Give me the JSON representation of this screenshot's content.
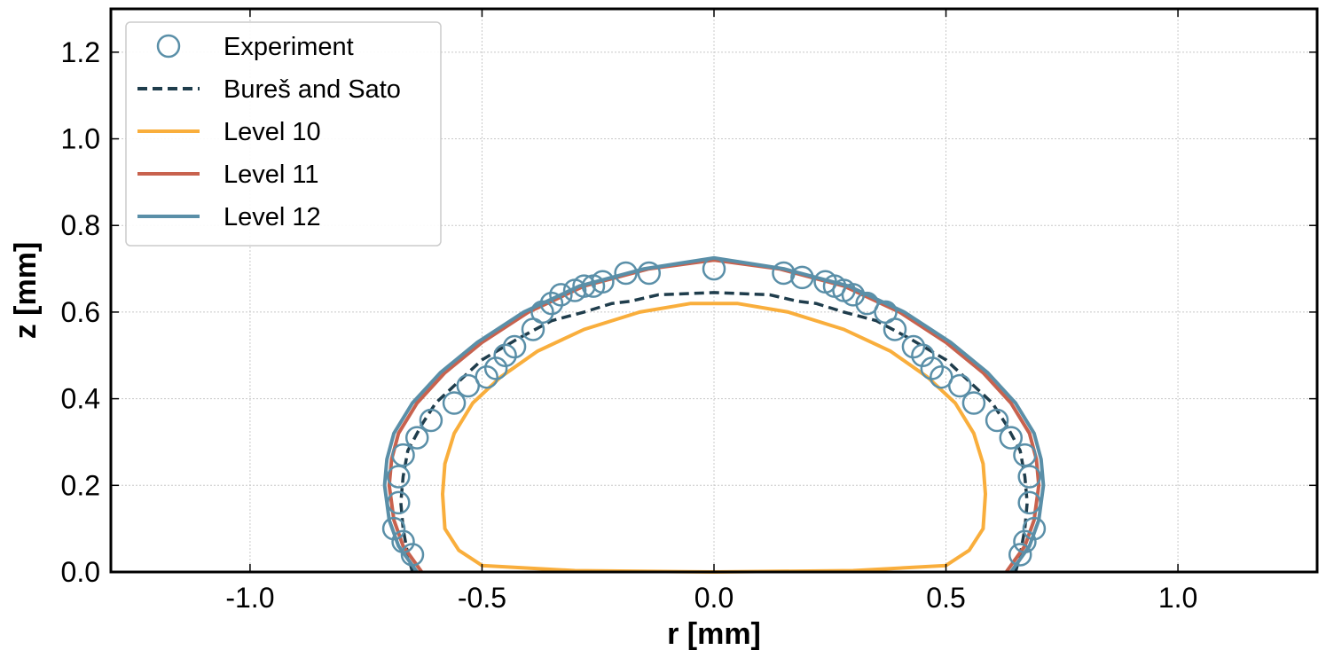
{
  "chart_data": {
    "type": "line",
    "xlabel": "r [mm]",
    "ylabel": "z [mm]",
    "xlim": [
      -1.3,
      1.3
    ],
    "ylim": [
      0.0,
      1.3
    ],
    "xticks": [
      -1.0,
      -0.5,
      0.0,
      0.5,
      1.0
    ],
    "xtick_labels": [
      "-1.0",
      "-0.5",
      "0.0",
      "0.5",
      "1.0"
    ],
    "yticks": [
      0.0,
      0.2,
      0.4,
      0.6,
      0.8,
      1.0,
      1.2
    ],
    "ytick_labels": [
      "0.0",
      "0.2",
      "0.4",
      "0.6",
      "0.8",
      "1.0",
      "1.2"
    ],
    "grid": true,
    "legend_position": "top-left",
    "series": [
      {
        "name": "Experiment",
        "style": "markers",
        "color": "#5a8fa8",
        "x": [
          -0.65,
          -0.67,
          -0.69,
          -0.68,
          -0.68,
          -0.67,
          -0.64,
          -0.61,
          -0.56,
          -0.53,
          -0.49,
          -0.47,
          -0.45,
          -0.43,
          -0.39,
          -0.37,
          -0.35,
          -0.33,
          -0.3,
          -0.28,
          -0.26,
          -0.24,
          -0.19,
          -0.14,
          0.0,
          0.15,
          0.19,
          0.24,
          0.26,
          0.28,
          0.3,
          0.33,
          0.37,
          0.39,
          0.43,
          0.45,
          0.47,
          0.49,
          0.53,
          0.56,
          0.61,
          0.64,
          0.67,
          0.68,
          0.68,
          0.69,
          0.67,
          0.66
        ],
        "y": [
          0.04,
          0.07,
          0.1,
          0.16,
          0.22,
          0.27,
          0.31,
          0.35,
          0.39,
          0.43,
          0.45,
          0.47,
          0.5,
          0.52,
          0.56,
          0.6,
          0.62,
          0.64,
          0.65,
          0.66,
          0.66,
          0.67,
          0.69,
          0.69,
          0.7,
          0.69,
          0.68,
          0.67,
          0.66,
          0.65,
          0.64,
          0.62,
          0.6,
          0.56,
          0.52,
          0.5,
          0.47,
          0.45,
          0.43,
          0.39,
          0.35,
          0.31,
          0.27,
          0.22,
          0.16,
          0.1,
          0.07,
          0.04
        ]
      },
      {
        "name": "Bureš and Sato",
        "style": "dashed",
        "color": "#1f3d4c",
        "x": [
          -0.65,
          -0.66,
          -0.67,
          -0.675,
          -0.67,
          -0.66,
          -0.63,
          -0.6,
          -0.55,
          -0.5,
          -0.42,
          -0.35,
          -0.28,
          -0.22,
          -0.18,
          -0.12,
          0.0,
          0.12,
          0.18,
          0.22,
          0.28,
          0.35,
          0.42,
          0.5,
          0.55,
          0.6,
          0.63,
          0.66,
          0.67,
          0.675,
          0.67,
          0.66,
          0.65
        ],
        "y": [
          0.0,
          0.04,
          0.1,
          0.16,
          0.22,
          0.28,
          0.34,
          0.39,
          0.44,
          0.49,
          0.54,
          0.58,
          0.6,
          0.62,
          0.625,
          0.64,
          0.645,
          0.64,
          0.625,
          0.62,
          0.6,
          0.58,
          0.54,
          0.49,
          0.44,
          0.39,
          0.34,
          0.28,
          0.22,
          0.16,
          0.1,
          0.04,
          0.0
        ]
      },
      {
        "name": "Level 10",
        "style": "solid",
        "color": "#f9ae3c",
        "x": [
          0.5,
          0.55,
          0.58,
          0.585,
          0.58,
          0.56,
          0.52,
          0.46,
          0.38,
          0.28,
          0.16,
          0.05,
          -0.05,
          -0.16,
          -0.28,
          -0.38,
          -0.46,
          -0.52,
          -0.56,
          -0.58,
          -0.585,
          -0.58,
          -0.55,
          -0.5,
          -0.3,
          0.0,
          0.3,
          0.5
        ],
        "y": [
          0.015,
          0.05,
          0.1,
          0.18,
          0.25,
          0.32,
          0.39,
          0.45,
          0.51,
          0.56,
          0.6,
          0.62,
          0.62,
          0.6,
          0.56,
          0.51,
          0.45,
          0.39,
          0.32,
          0.25,
          0.18,
          0.1,
          0.05,
          0.015,
          0.003,
          0.0,
          0.003,
          0.015
        ]
      },
      {
        "name": "Level 11",
        "style": "solid",
        "color": "#c8624e",
        "x": [
          0.63,
          0.67,
          0.69,
          0.7,
          0.695,
          0.68,
          0.64,
          0.58,
          0.5,
          0.4,
          0.28,
          0.14,
          0.0,
          -0.14,
          -0.28,
          -0.4,
          -0.5,
          -0.58,
          -0.64,
          -0.68,
          -0.695,
          -0.7,
          -0.69,
          -0.67,
          -0.63
        ],
        "y": [
          0.0,
          0.06,
          0.12,
          0.2,
          0.26,
          0.32,
          0.39,
          0.46,
          0.53,
          0.6,
          0.66,
          0.7,
          0.72,
          0.7,
          0.66,
          0.6,
          0.53,
          0.46,
          0.39,
          0.32,
          0.26,
          0.2,
          0.12,
          0.06,
          0.0
        ]
      },
      {
        "name": "Level 12",
        "style": "solid",
        "color": "#5a8fa8",
        "x": [
          0.64,
          0.68,
          0.7,
          0.71,
          0.705,
          0.69,
          0.65,
          0.59,
          0.51,
          0.41,
          0.29,
          0.15,
          0.0,
          -0.15,
          -0.29,
          -0.41,
          -0.51,
          -0.59,
          -0.65,
          -0.69,
          -0.705,
          -0.71,
          -0.7,
          -0.68,
          -0.64
        ],
        "y": [
          0.0,
          0.06,
          0.12,
          0.2,
          0.26,
          0.32,
          0.39,
          0.46,
          0.53,
          0.6,
          0.66,
          0.7,
          0.725,
          0.7,
          0.66,
          0.6,
          0.53,
          0.46,
          0.39,
          0.32,
          0.26,
          0.2,
          0.12,
          0.06,
          0.0
        ]
      }
    ]
  }
}
